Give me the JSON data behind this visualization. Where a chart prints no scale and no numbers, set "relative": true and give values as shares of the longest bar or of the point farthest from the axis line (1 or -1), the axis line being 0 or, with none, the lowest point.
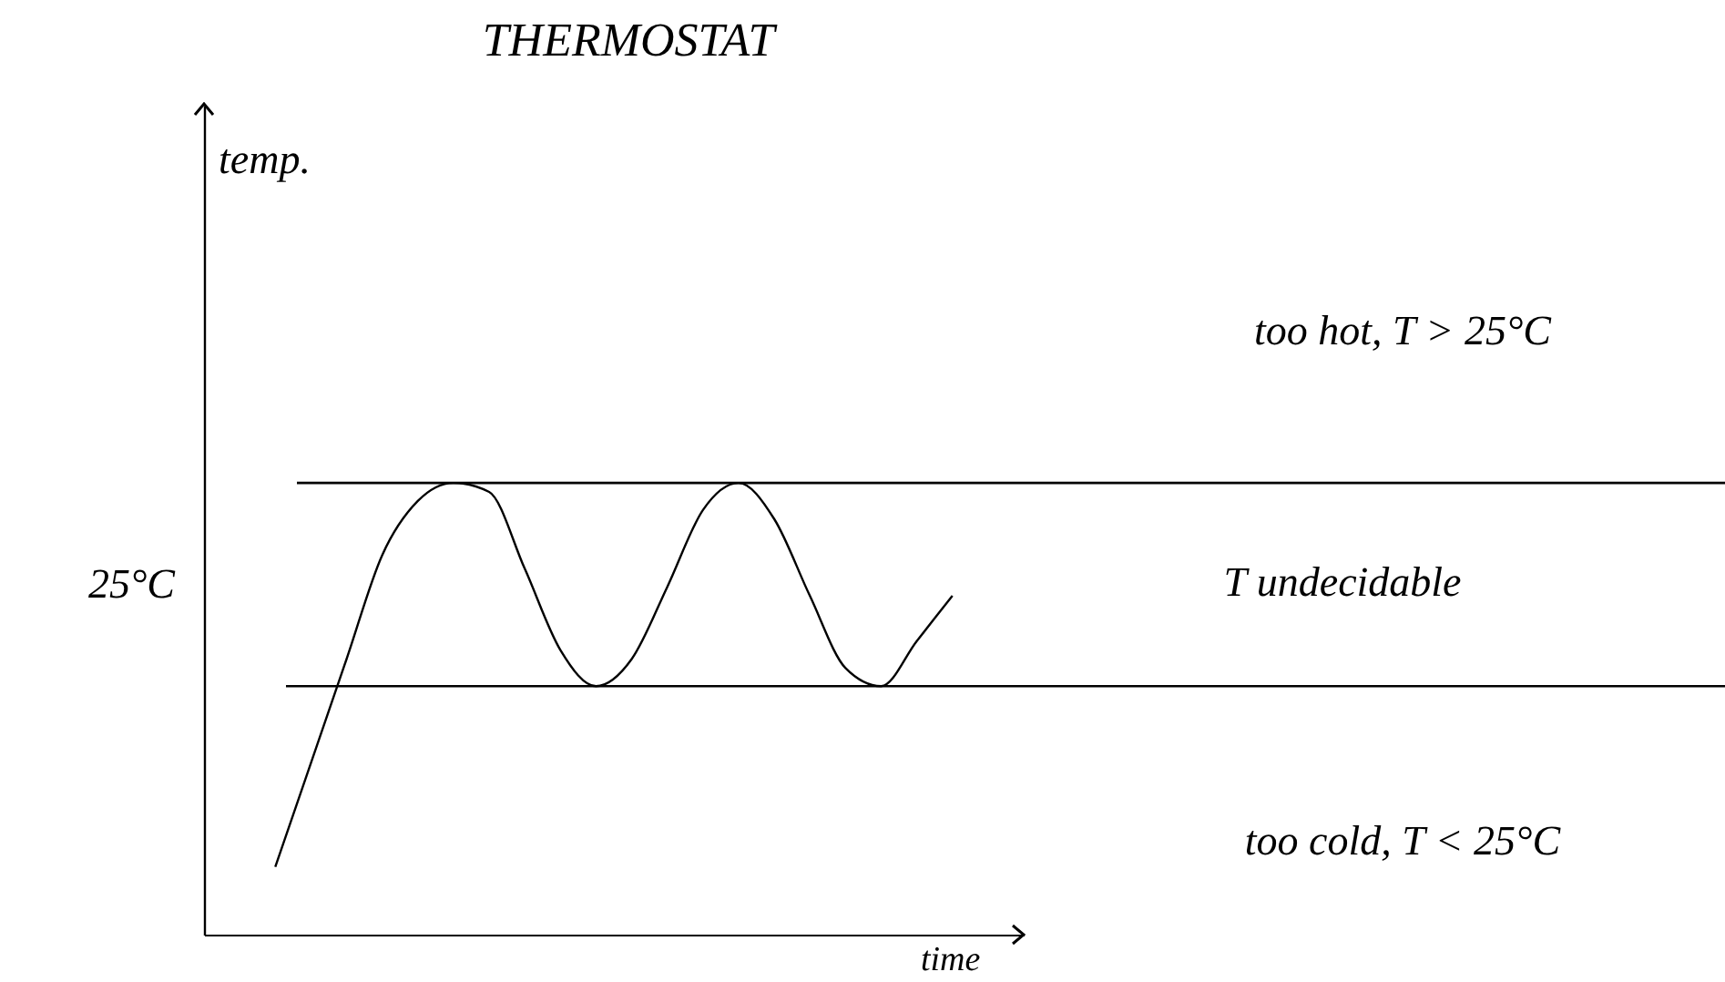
{
  "chart_data": {
    "type": "line",
    "title": "THERMOSTAT",
    "xlabel": "time",
    "relative": true,
    "categories": [
      null,
      null,
      null,
      null,
      null,
      null,
      null,
      null,
      null,
      null,
      null,
      null,
      null,
      null,
      null,
      null,
      null,
      null,
      null,
      null,
      null,
      null,
      null,
      null
    ],
    "series": [
      {
        "color": "#000000",
        "values": [
          null,
          null,
          0.15,
          0.38,
          0.61,
          0.84,
          0.96,
          1,
          0.98,
          0.81,
          0.63,
          0.55,
          0.61,
          0.77,
          0.94,
          1,
          0.92,
          0.75,
          0.59,
          0.55,
          0.65,
          0.75,
          null,
          null
        ]
      }
    ],
    "ref_lines": [
      {
        "axis": "y",
        "value": 1,
        "color": "#000000"
      },
      {
        "axis": "y",
        "value": 0.55,
        "color": "#000000"
      }
    ],
    "annotations": [
      "25°C",
      "temp.",
      "too hot, T > 25°C",
      "T undecidable",
      "too cold, T < 25°C"
    ],
    "grid": false,
    "marker": "none",
    "line_style": "solid"
  }
}
